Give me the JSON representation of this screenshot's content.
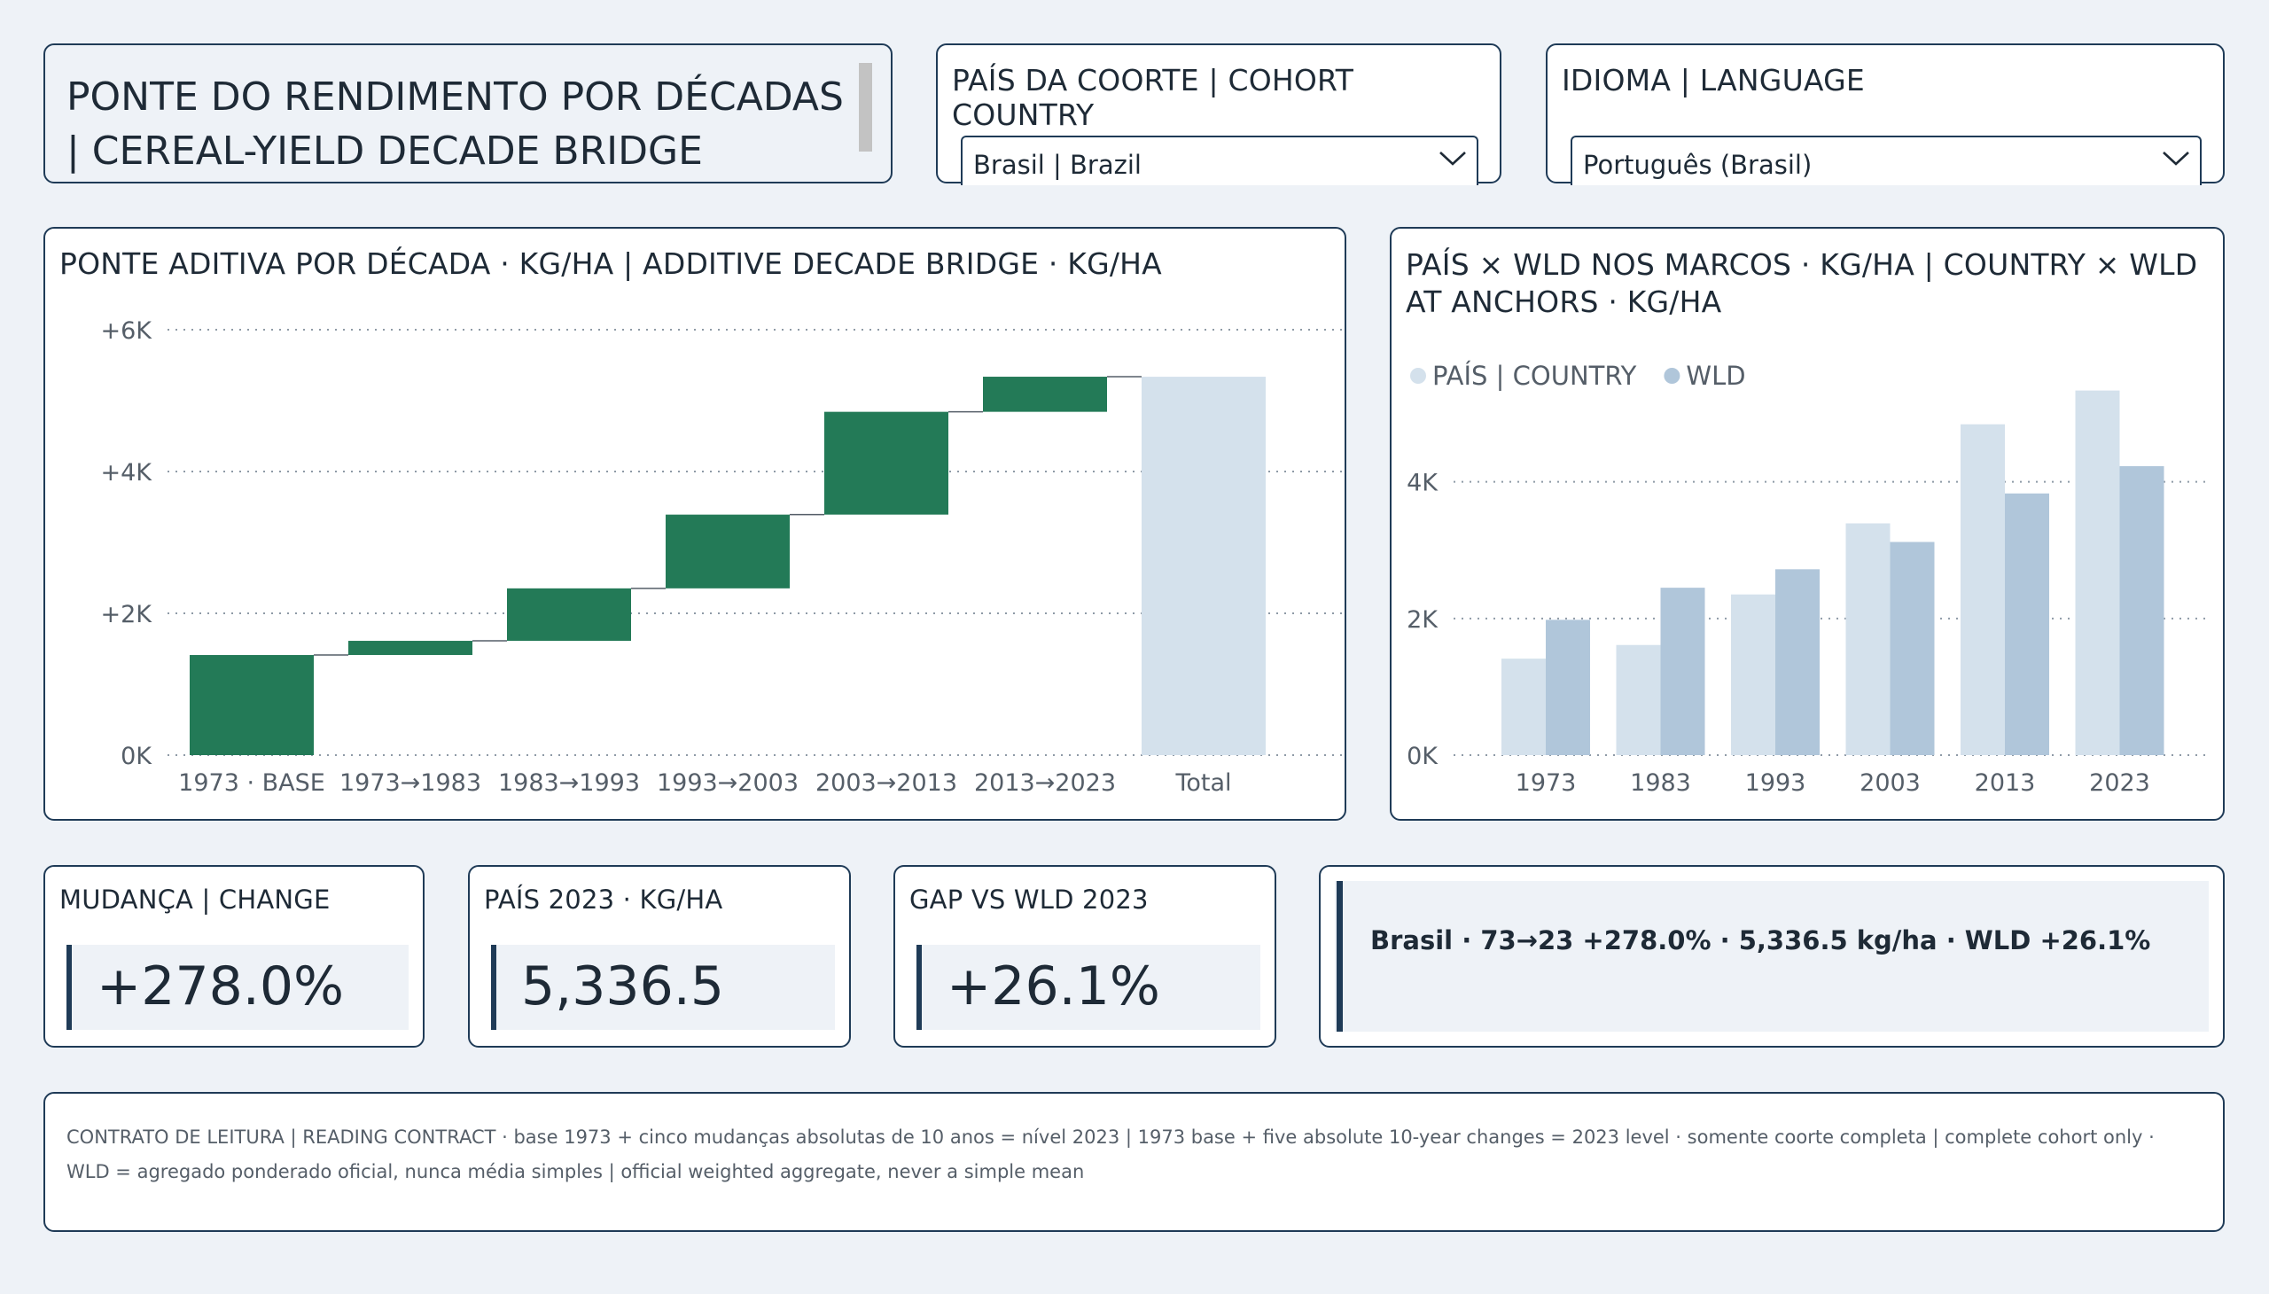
{
  "header": {
    "title": "PONTE DO RENDIMENTO POR DÉCADAS | CEREAL-YIELD DECADE BRIDGE"
  },
  "country_slicer": {
    "title": "PAÍS DA COORTE | COHORT COUNTRY",
    "selected": "Brasil | Brazil",
    "icon": "chevron-down-icon"
  },
  "language_slicer": {
    "title": "IDIOMA | LANGUAGE",
    "selected": "Português (Brasil)",
    "icon": "chevron-down-icon"
  },
  "bridge_panel": {
    "title": "PONTE ADITIVA POR DÉCADA · KG/HA | ADDITIVE DECADE BRIDGE · KG/HA"
  },
  "anchor_panel": {
    "title": "PAÍS × WLD NOS MARCOS · KG/HA | COUNTRY × WLD AT ANCHORS · KG/HA"
  },
  "kpis": {
    "change": {
      "label": "MUDANÇA | CHANGE",
      "value": "+278.0%"
    },
    "country_2023": {
      "label": "PAÍS 2023 · KG/HA",
      "value": "5,336.5"
    },
    "gap": {
      "label": "GAP VS WLD 2023",
      "value": "+26.1%"
    }
  },
  "summary": {
    "text": "Brasil · 73→23 +278.0% · 5,336.5 kg/ha · WLD +26.1%"
  },
  "contract": {
    "text": "CONTRATO DE LEITURA | READING CONTRACT · base 1973 + cinco mudanças absolutas de 10 anos = nível 2023 | 1973 base + five absolute 10-year changes = 2023 level · somente coorte completa | complete cohort only · WLD = agregado ponderado oficial, nunca média simples | official weighted aggregate, never a simple mean"
  },
  "colors": {
    "increase": "#237a57",
    "total": "#d4e1ec",
    "country": "#d4e1ec",
    "wld": "#b0c6da",
    "border": "#1f3b57"
  },
  "chart_data": [
    {
      "type": "waterfall",
      "categories": [
        "1973 · BASE",
        "1973→1983",
        "1983→1993",
        "1993→2003",
        "2003→2013",
        "2013→2023",
        "Total"
      ],
      "steps": [
        1412,
        200,
        740,
        1040,
        1450,
        495
      ],
      "total": 5336.5,
      "y_ticks": [
        "0K",
        "+2K",
        "+4K",
        "+6K"
      ],
      "y_tick_values": [
        0,
        2000,
        4000,
        6000
      ],
      "ylim": [
        0,
        6000
      ],
      "grid": true
    },
    {
      "type": "bar",
      "categories": [
        "1973",
        "1983",
        "1993",
        "2003",
        "2013",
        "2023"
      ],
      "series": [
        {
          "name": "PAÍS | COUNTRY",
          "values": [
            1412,
            1612,
            2352,
            3392,
            4842,
            5336.5
          ]
        },
        {
          "name": "WLD",
          "values": [
            1980,
            2450,
            2720,
            3120,
            3830,
            4230
          ]
        }
      ],
      "y_ticks": [
        "0K",
        "2K",
        "4K"
      ],
      "y_tick_values": [
        0,
        2000,
        4000
      ],
      "ylim": [
        0,
        5500
      ],
      "legend": "top-left",
      "grid": true
    }
  ]
}
